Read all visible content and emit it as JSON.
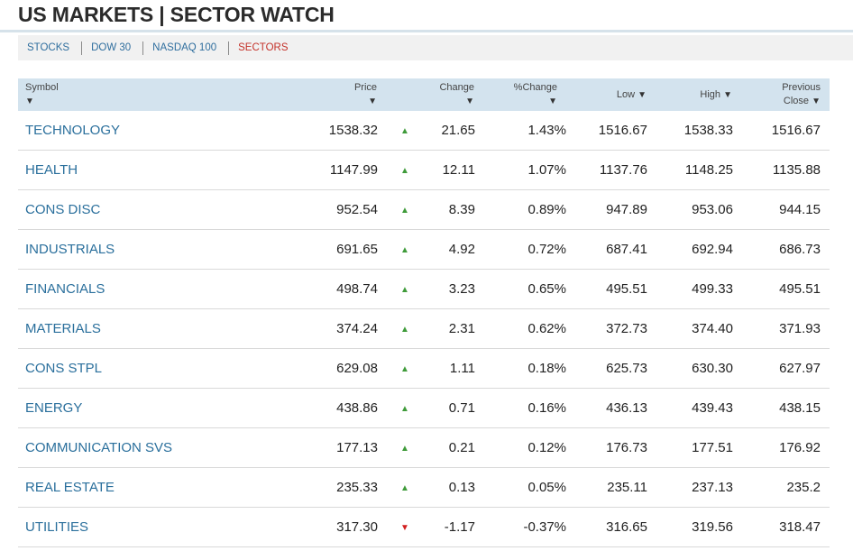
{
  "header": {
    "title": "US MARKETS | SECTOR WATCH"
  },
  "tabs": [
    {
      "label": "STOCKS",
      "active": false
    },
    {
      "label": "DOW 30",
      "active": false
    },
    {
      "label": "NASDAQ 100",
      "active": false
    },
    {
      "label": "SECTORS",
      "active": true
    }
  ],
  "table": {
    "columns": {
      "symbol": "Symbol",
      "price": "Price",
      "change": "Change",
      "pct_change": "%Change",
      "low": "Low",
      "high": "High",
      "previous_close_1": "Previous",
      "previous_close_2": "Close",
      "sort_icon": "sort-down-icon"
    },
    "rows": [
      {
        "symbol": "TECHNOLOGY",
        "price": "1538.32",
        "direction": "up",
        "change": "21.65",
        "pct": "1.43%",
        "low": "1516.67",
        "high": "1538.33",
        "prev": "1516.67"
      },
      {
        "symbol": "HEALTH",
        "price": "1147.99",
        "direction": "up",
        "change": "12.11",
        "pct": "1.07%",
        "low": "1137.76",
        "high": "1148.25",
        "prev": "1135.88"
      },
      {
        "symbol": "CONS DISC",
        "price": "952.54",
        "direction": "up",
        "change": "8.39",
        "pct": "0.89%",
        "low": "947.89",
        "high": "953.06",
        "prev": "944.15"
      },
      {
        "symbol": "INDUSTRIALS",
        "price": "691.65",
        "direction": "up",
        "change": "4.92",
        "pct": "0.72%",
        "low": "687.41",
        "high": "692.94",
        "prev": "686.73"
      },
      {
        "symbol": "FINANCIALS",
        "price": "498.74",
        "direction": "up",
        "change": "3.23",
        "pct": "0.65%",
        "low": "495.51",
        "high": "499.33",
        "prev": "495.51"
      },
      {
        "symbol": "MATERIALS",
        "price": "374.24",
        "direction": "up",
        "change": "2.31",
        "pct": "0.62%",
        "low": "372.73",
        "high": "374.40",
        "prev": "371.93"
      },
      {
        "symbol": "CONS STPL",
        "price": "629.08",
        "direction": "up",
        "change": "1.11",
        "pct": "0.18%",
        "low": "625.73",
        "high": "630.30",
        "prev": "627.97"
      },
      {
        "symbol": "ENERGY",
        "price": "438.86",
        "direction": "up",
        "change": "0.71",
        "pct": "0.16%",
        "low": "436.13",
        "high": "439.43",
        "prev": "438.15"
      },
      {
        "symbol": "COMMUNICATION SVS",
        "price": "177.13",
        "direction": "up",
        "change": "0.21",
        "pct": "0.12%",
        "low": "176.73",
        "high": "177.51",
        "prev": "176.92"
      },
      {
        "symbol": "REAL ESTATE",
        "price": "235.33",
        "direction": "up",
        "change": "0.13",
        "pct": "0.05%",
        "low": "235.11",
        "high": "237.13",
        "prev": "235.2"
      },
      {
        "symbol": "UTILITIES",
        "price": "317.30",
        "direction": "down",
        "change": "-1.17",
        "pct": "-0.37%",
        "low": "316.65",
        "high": "319.56",
        "prev": "318.47"
      }
    ]
  },
  "colors": {
    "link": "#2a6f9c",
    "active_tab": "#c4322a",
    "header_bg": "#d3e3ee",
    "up": "#3f9b3a",
    "down": "#d21f1f"
  }
}
